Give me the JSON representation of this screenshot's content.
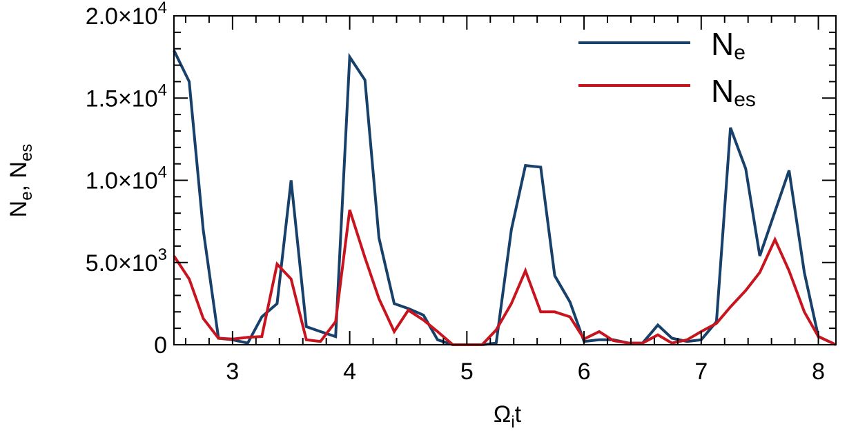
{
  "chart_data": {
    "type": "line",
    "xlabel": "Ω",
    "xlabel_sub": "i",
    "xlabel_suffix": "t",
    "ylabel": "N",
    "ylabel_sub1": "e",
    "ylabel_sep": ",  N",
    "ylabel_sub2": "es",
    "xlim": [
      2.5,
      8.15
    ],
    "ylim": [
      0,
      20000
    ],
    "x_ticks": [
      {
        "value": 3,
        "label": "3"
      },
      {
        "value": 4,
        "label": "4"
      },
      {
        "value": 5,
        "label": "5"
      },
      {
        "value": 6,
        "label": "6"
      },
      {
        "value": 7,
        "label": "7"
      },
      {
        "value": 8,
        "label": "8"
      }
    ],
    "y_ticks": [
      {
        "value": 0,
        "label": "0",
        "exp": ""
      },
      {
        "value": 5000,
        "label": "5.0×10",
        "exp": "3"
      },
      {
        "value": 10000,
        "label": "1.0×10",
        "exp": "4"
      },
      {
        "value": 15000,
        "label": "1.5×10",
        "exp": "4"
      },
      {
        "value": 20000,
        "label": "2.0×10",
        "exp": "4"
      }
    ],
    "grid": false,
    "legend_position": "top-right",
    "series": [
      {
        "name": "N",
        "name_sub": "e",
        "color": "#17406a",
        "x": [
          2.5,
          2.63,
          2.75,
          2.88,
          3.0,
          3.13,
          3.25,
          3.38,
          3.5,
          3.63,
          3.75,
          3.88,
          4.0,
          4.13,
          4.25,
          4.38,
          4.5,
          4.63,
          4.75,
          4.88,
          5.0,
          5.13,
          5.25,
          5.38,
          5.5,
          5.63,
          5.75,
          5.88,
          6.0,
          6.13,
          6.25,
          6.38,
          6.5,
          6.63,
          6.75,
          6.88,
          7.0,
          7.13,
          7.25,
          7.38,
          7.5,
          7.63,
          7.75,
          7.88,
          8.0,
          8.15
        ],
        "values": [
          17900,
          16000,
          7000,
          400,
          300,
          100,
          1700,
          2500,
          10000,
          1100,
          800,
          500,
          17500,
          16100,
          6500,
          2500,
          2200,
          1800,
          300,
          0,
          0,
          0,
          100,
          7000,
          10900,
          10800,
          4200,
          2600,
          200,
          300,
          300,
          100,
          100,
          1200,
          400,
          200,
          300,
          1400,
          13200,
          10700,
          5400,
          8100,
          10600,
          4400,
          500,
          0
        ],
        "legend_label": "N",
        "legend_sub": "e"
      },
      {
        "name": "N",
        "name_sub": "es",
        "color": "#c8141e",
        "x": [
          2.5,
          2.63,
          2.75,
          2.88,
          3.0,
          3.13,
          3.25,
          3.38,
          3.5,
          3.63,
          3.75,
          3.88,
          4.0,
          4.13,
          4.25,
          4.38,
          4.5,
          4.63,
          4.75,
          4.88,
          5.0,
          5.13,
          5.25,
          5.38,
          5.5,
          5.63,
          5.75,
          5.88,
          6.0,
          6.13,
          6.25,
          6.38,
          6.5,
          6.63,
          6.75,
          6.88,
          7.0,
          7.13,
          7.25,
          7.38,
          7.5,
          7.63,
          7.75,
          7.88,
          8.0,
          8.15
        ],
        "values": [
          5400,
          4000,
          1600,
          400,
          350,
          450,
          500,
          4900,
          4000,
          300,
          200,
          1400,
          8200,
          5300,
          2800,
          800,
          2100,
          1500,
          800,
          0,
          0,
          0,
          900,
          2500,
          4500,
          2000,
          2000,
          1700,
          350,
          800,
          250,
          100,
          100,
          600,
          100,
          300,
          800,
          1300,
          2300,
          3300,
          4400,
          6400,
          4500,
          2000,
          500,
          0
        ],
        "legend_label": "N",
        "legend_sub": "es"
      }
    ]
  }
}
